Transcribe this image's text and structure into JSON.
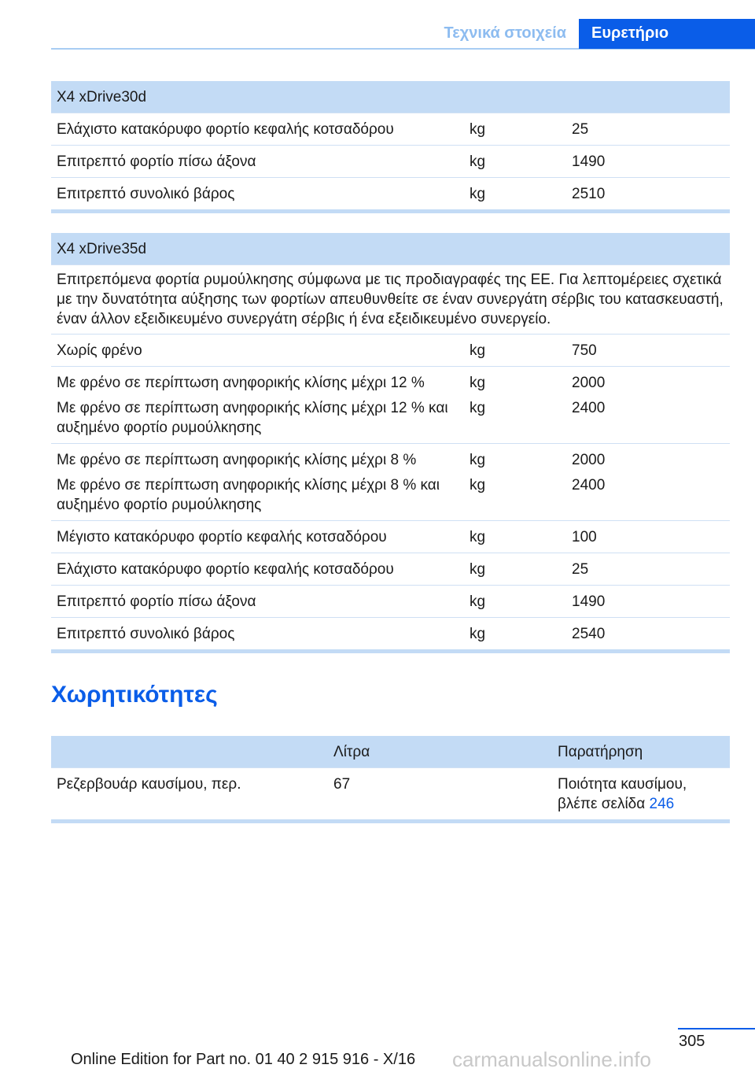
{
  "header": {
    "tab_section": "Τεχνικά στοιχεία",
    "tab_index": "Ευρετήριο"
  },
  "table1": {
    "title": "X4 xDrive30d",
    "rows": [
      {
        "label": "Ελάχιστο κατακόρυφο φορτίο κεφαλής κοτσαδόρου",
        "unit": "kg",
        "value": "25"
      },
      {
        "label": "Επιτρεπτό φορτίο πίσω άξονα",
        "unit": "kg",
        "value": "1490"
      },
      {
        "label": "Επιτρεπτό συνολικό βάρος",
        "unit": "kg",
        "value": "2510"
      }
    ]
  },
  "table2": {
    "title": "X4 xDrive35d",
    "note": "Επιτρεπόμενα φορτία ρυμούλκησης σύμφωνα με τις προδιαγραφές της ΕΕ. Για λεπτομέρειες σχετικά με την δυνατότητα αύξησης των φορτίων απευθυνθείτε σε έναν συνεργάτη σέρβις του κατασκευαστή, έναν άλλον εξειδικευμένο συνεργάτη σέρβις ή ένα εξειδικευμένο συνεργείο.",
    "rows": [
      {
        "label": "Χωρίς φρένο",
        "unit": "kg",
        "value": "750"
      },
      {
        "label": "Με φρένο σε περίπτωση ανηφορικής κλίσης μέχρι 12 %",
        "unit": "kg",
        "value": "2000",
        "label2": "Με φρένο σε περίπτωση ανηφορικής κλίσης μέχρι 12 % και αυξημένο φορτίο ρυμούλκησης",
        "unit2": "kg",
        "value2": "2400"
      },
      {
        "label": "Με φρένο σε περίπτωση ανηφορικής κλίσης μέχρι 8 %",
        "unit": "kg",
        "value": "2000",
        "label2": "Με φρένο σε περίπτωση ανηφορικής κλίσης μέχρι 8 % και αυξημένο φορτίο ρυμούλκησης",
        "unit2": "kg",
        "value2": "2400"
      },
      {
        "label": "Μέγιστο κατακόρυφο φορτίο κεφαλής κοτσαδόρου",
        "unit": "kg",
        "value": "100"
      },
      {
        "label": "Ελάχιστο κατακόρυφο φορτίο κεφαλής κοτσαδόρου",
        "unit": "kg",
        "value": "25"
      },
      {
        "label": "Επιτρεπτό φορτίο πίσω άξονα",
        "unit": "kg",
        "value": "1490"
      },
      {
        "label": "Επιτρεπτό συνολικό βάρος",
        "unit": "kg",
        "value": "2540"
      }
    ]
  },
  "capacities": {
    "heading": "Χωρητικότητες",
    "col_liters": "Λίτρα",
    "col_note": "Παρατήρηση",
    "row": {
      "label": "Ρεζερβουάρ καυσίμου, περ.",
      "liters": "67",
      "note": "Ποιότητα καυσίμου, βλέπε σελίδα ",
      "link": "246"
    }
  },
  "footer": {
    "page_number": "305",
    "edition": "Online Edition for Part no. 01 40 2 915 916 - X/16",
    "watermark": "carmanualsonline.info"
  }
}
